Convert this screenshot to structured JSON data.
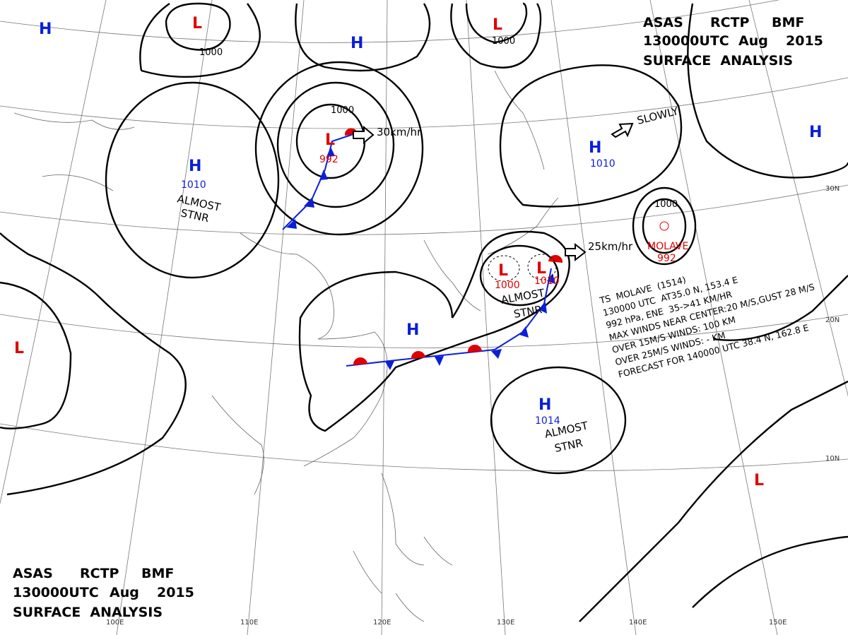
{
  "header": {
    "line1": [
      "ASAS",
      "RCTP",
      "BMF"
    ],
    "line2": [
      "130000UTC",
      "Aug",
      "2015"
    ],
    "line3": "SURFACE  ANALYSIS"
  },
  "footer": {
    "line1": [
      "ASAS",
      "RCTP",
      "BMF"
    ],
    "line2": [
      "130000UTC",
      "Aug",
      "2015"
    ],
    "line3": "SURFACE  ANALYSIS"
  },
  "centers": [
    {
      "type": "H"
    },
    {
      "type": "L"
    },
    {
      "type": "H"
    },
    {
      "type": "L"
    },
    {
      "type": "L",
      "pressure": 992
    },
    {
      "type": "H",
      "pressure": 1010
    },
    {
      "type": "H",
      "pressure": 1010
    },
    {
      "type": "H"
    },
    {
      "type": "L",
      "pressure": 1000
    },
    {
      "type": "L",
      "pressure": 1010
    },
    {
      "type": "H"
    },
    {
      "type": "H",
      "pressure": 1014
    },
    {
      "type": "L"
    },
    {
      "type": "L"
    }
  ],
  "storm": {
    "name": "MOLAVE",
    "pressure": 992
  },
  "isobar_labels": [
    1000,
    1000,
    1000,
    1000
  ],
  "motions": [
    "30km/hr",
    "25km/hr",
    "SLOWLY"
  ],
  "notes": [
    [
      "ALMOST",
      "STNR"
    ],
    [
      "ALMOST",
      "STNR"
    ],
    [
      "ALMOST",
      "STNR"
    ]
  ],
  "storm_info": [
    "TS  MOLAVE  (1514)",
    "130000 UTC  AT35.0 N, 153.4 E",
    "992 hPa, ENE  35->41 KM/HR",
    "MAX WINDS NEAR CENTER:20 M/S,GUST 28 M/S",
    "OVER 15M/S WINDS: 100 KM",
    "OVER 25M/S WINDS: - KM",
    "FORECAST FOR 140000 UTC 38.4 N, 162.8 E"
  ],
  "grid_labels": {
    "lon": [
      "100E",
      "110E",
      "120E",
      "130E",
      "140E",
      "150E"
    ],
    "lat": [
      "10N",
      "20N",
      "30N"
    ]
  }
}
